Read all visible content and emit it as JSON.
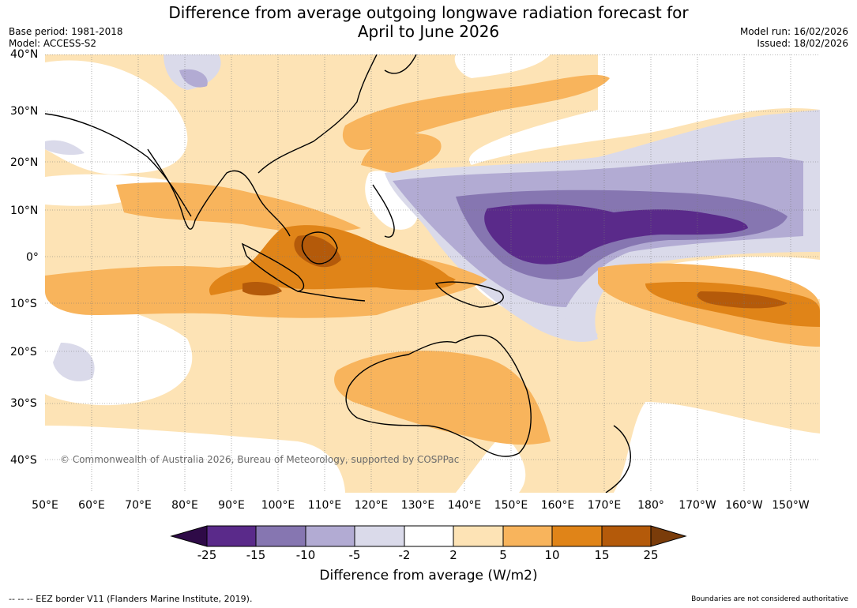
{
  "title_line1": "Difference from average outgoing longwave radiation forecast for",
  "title_line2": "April to June 2026",
  "base_period": "Base period: 1981-2018",
  "model": "Model: ACCESS-S2",
  "model_run": "Model run: 16/02/2026",
  "issued": "Issued: 18/02/2026",
  "lat_labels": [
    "40°N",
    "30°N",
    "20°N",
    "10°N",
    "0°",
    "10°S",
    "20°S",
    "30°S",
    "40°S"
  ],
  "lon_labels": [
    "50°E",
    "60°E",
    "70°E",
    "80°E",
    "90°E",
    "100°E",
    "110°E",
    "120°E",
    "130°E",
    "140°E",
    "150°E",
    "160°E",
    "170°E",
    "180°",
    "170°W",
    "160°W",
    "150°W"
  ],
  "copyright": "© Commonwealth of Australia 2026, Bureau of Meteorology, supported by COSPPac",
  "colorbar": {
    "title": "Difference from average (W/m2)",
    "ticks": [
      "-25",
      "-15",
      "-10",
      "-5",
      "-2",
      "2",
      "5",
      "10",
      "15",
      "25"
    ],
    "colors": {
      "below": "#2e0a47",
      "c1": "#5a2a8a",
      "c2": "#8676b1",
      "c3": "#b2abd3",
      "c4": "#dadaea",
      "c5": "#ffffff",
      "c6": "#fde3b5",
      "c7": "#f8b45c",
      "c8": "#e08418",
      "c9": "#b45a0a",
      "above": "#7a3c0a"
    }
  },
  "footer_left": "--  --  -- EEZ border V11 (Flanders Marine Institute, 2019).",
  "footer_right": "Boundaries are not considered authoritative"
}
